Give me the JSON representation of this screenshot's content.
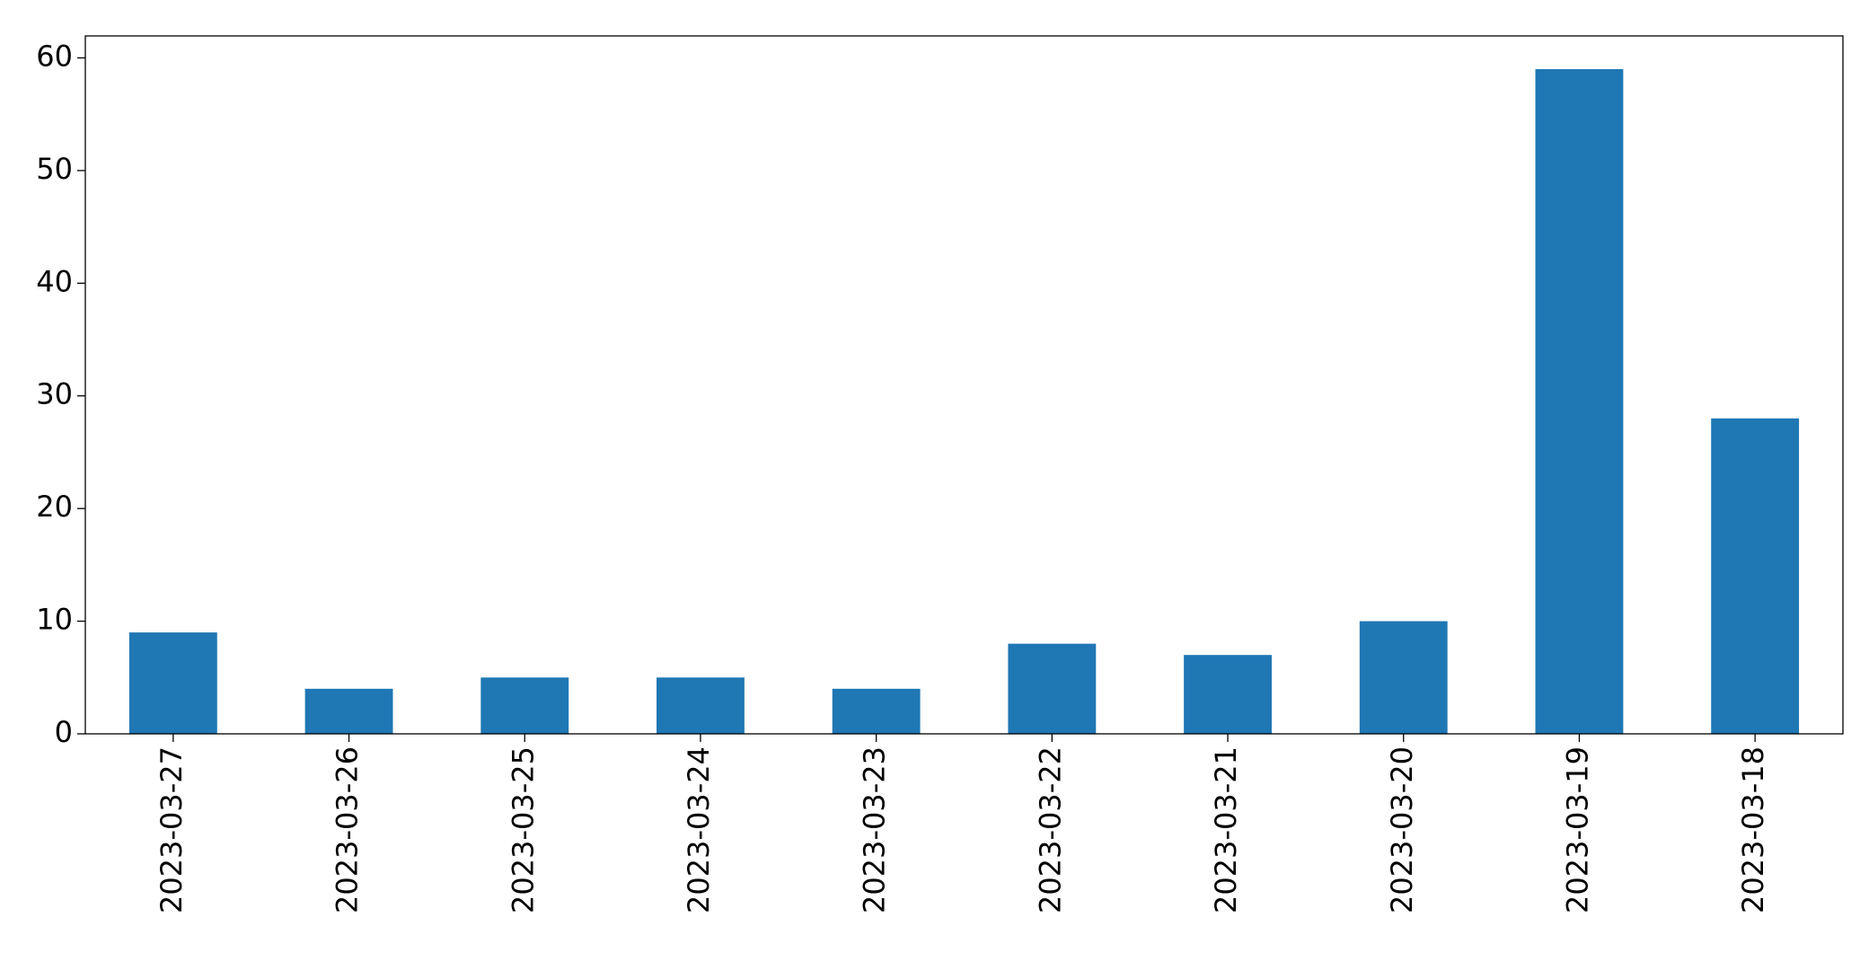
{
  "chart_data": {
    "type": "bar",
    "categories": [
      "2023-03-27",
      "2023-03-26",
      "2023-03-25",
      "2023-03-24",
      "2023-03-23",
      "2023-03-22",
      "2023-03-21",
      "2023-03-20",
      "2023-03-19",
      "2023-03-18"
    ],
    "values": [
      9,
      4,
      5,
      5,
      4,
      8,
      7,
      10,
      59,
      28
    ],
    "color": "#1f77b4",
    "ylim": [
      0,
      61.95
    ],
    "yticks": [
      0,
      10,
      20,
      30,
      40,
      50,
      60
    ],
    "grid": false
  }
}
